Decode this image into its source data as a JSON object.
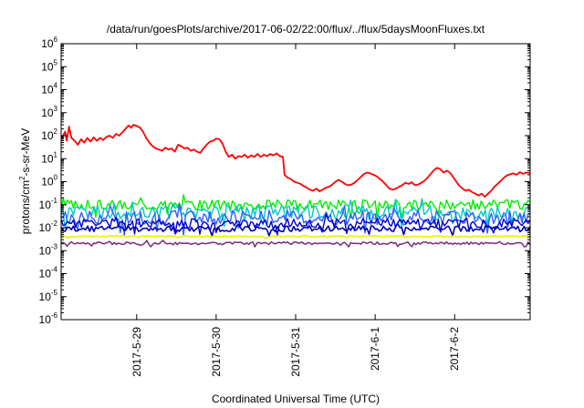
{
  "chart_data": {
    "type": "line",
    "title": "/data/run/goesPlots/archive/2017-06-02/22:00/flux/../flux/5daysMoonFluxes.txt",
    "xlabel": "Coordinated Universal Time (UTC)",
    "ylabel": {
      "prefix": "protons/cm",
      "sup": "2",
      "suffix": "-s-sr-MeV"
    },
    "x_ticks": [
      "2017-5-29",
      "2017-5-30",
      "2017-5-31",
      "2017-6-1",
      "2017-6-2"
    ],
    "y_scale": "log",
    "y_ticks": [
      {
        "value": 1e-06,
        "base": "10",
        "exp": "-6"
      },
      {
        "value": 1e-05,
        "base": "10",
        "exp": "-5"
      },
      {
        "value": 0.0001,
        "base": "10",
        "exp": "-4"
      },
      {
        "value": 0.001,
        "base": "10",
        "exp": "-3"
      },
      {
        "value": 0.01,
        "base": "10",
        "exp": "-2"
      },
      {
        "value": 0.1,
        "base": "10",
        "exp": "-1"
      },
      {
        "value": 1,
        "base": "10",
        "exp": "0"
      },
      {
        "value": 10,
        "base": "10",
        "exp": "1"
      },
      {
        "value": 100,
        "base": "10",
        "exp": "2"
      },
      {
        "value": 1000,
        "base": "10",
        "exp": "3"
      },
      {
        "value": 10000.0,
        "base": "10",
        "exp": "4"
      },
      {
        "value": 100000.0,
        "base": "10",
        "exp": "5"
      },
      {
        "value": 1000000.0,
        "base": "10",
        "exp": "6"
      }
    ],
    "xlim_days": [
      -0.95,
      4.95
    ],
    "ylim": [
      1e-06,
      1000000.0
    ],
    "grid": false,
    "legend": "none",
    "series": [
      {
        "color": "#ff0000",
        "width": 1.8,
        "points": [
          [
            -0.95,
            70
          ],
          [
            -0.9,
            150
          ],
          [
            -0.88,
            60
          ],
          [
            -0.85,
            250
          ],
          [
            -0.82,
            80
          ],
          [
            -0.78,
            60
          ],
          [
            -0.74,
            40
          ],
          [
            -0.7,
            70
          ],
          [
            -0.66,
            50
          ],
          [
            -0.62,
            80
          ],
          [
            -0.58,
            55
          ],
          [
            -0.54,
            85
          ],
          [
            -0.5,
            60
          ],
          [
            -0.46,
            80
          ],
          [
            -0.42,
            65
          ],
          [
            -0.38,
            90
          ],
          [
            -0.34,
            100
          ],
          [
            -0.3,
            80
          ],
          [
            -0.26,
            120
          ],
          [
            -0.22,
            100
          ],
          [
            -0.18,
            140
          ],
          [
            -0.14,
            200
          ],
          [
            -0.1,
            280
          ],
          [
            -0.07,
            220
          ],
          [
            -0.04,
            300
          ],
          [
            0.0,
            260
          ],
          [
            0.04,
            230
          ],
          [
            0.08,
            150
          ],
          [
            0.12,
            80
          ],
          [
            0.16,
            50
          ],
          [
            0.2,
            35
          ],
          [
            0.24,
            28
          ],
          [
            0.28,
            25
          ],
          [
            0.32,
            22
          ],
          [
            0.36,
            30
          ],
          [
            0.4,
            25
          ],
          [
            0.44,
            28
          ],
          [
            0.48,
            20
          ],
          [
            0.52,
            40
          ],
          [
            0.56,
            35
          ],
          [
            0.6,
            28
          ],
          [
            0.64,
            30
          ],
          [
            0.68,
            22
          ],
          [
            0.72,
            25
          ],
          [
            0.76,
            20
          ],
          [
            0.8,
            18
          ],
          [
            0.84,
            28
          ],
          [
            0.88,
            40
          ],
          [
            0.92,
            55
          ],
          [
            0.96,
            60
          ],
          [
            1.0,
            75
          ],
          [
            1.04,
            70
          ],
          [
            1.08,
            45
          ],
          [
            1.12,
            20
          ],
          [
            1.16,
            12
          ],
          [
            1.2,
            15
          ],
          [
            1.24,
            10
          ],
          [
            1.28,
            13
          ],
          [
            1.32,
            12
          ],
          [
            1.36,
            15
          ],
          [
            1.4,
            11
          ],
          [
            1.44,
            14
          ],
          [
            1.48,
            12
          ],
          [
            1.52,
            16
          ],
          [
            1.56,
            12
          ],
          [
            1.6,
            15
          ],
          [
            1.64,
            13
          ],
          [
            1.68,
            16
          ],
          [
            1.72,
            14
          ],
          [
            1.76,
            17
          ],
          [
            1.8,
            13
          ],
          [
            1.84,
            12
          ],
          [
            1.86,
            2.0
          ],
          [
            1.9,
            1.5
          ],
          [
            1.94,
            1.3
          ],
          [
            1.98,
            1.0
          ],
          [
            2.02,
            0.9
          ],
          [
            2.06,
            0.8
          ],
          [
            2.1,
            0.65
          ],
          [
            2.14,
            0.55
          ],
          [
            2.18,
            0.45
          ],
          [
            2.22,
            0.4
          ],
          [
            2.26,
            0.5
          ],
          [
            2.3,
            0.38
          ],
          [
            2.34,
            0.45
          ],
          [
            2.38,
            0.55
          ],
          [
            2.42,
            0.6
          ],
          [
            2.46,
            0.75
          ],
          [
            2.5,
            1.0
          ],
          [
            2.54,
            1.2
          ],
          [
            2.58,
            1.0
          ],
          [
            2.62,
            0.8
          ],
          [
            2.66,
            0.7
          ],
          [
            2.7,
            0.75
          ],
          [
            2.74,
            0.9
          ],
          [
            2.78,
            1.2
          ],
          [
            2.82,
            1.6
          ],
          [
            2.86,
            2.2
          ],
          [
            2.9,
            2.5
          ],
          [
            2.94,
            2.3
          ],
          [
            2.98,
            2.0
          ],
          [
            3.02,
            1.7
          ],
          [
            3.06,
            1.3
          ],
          [
            3.1,
            1.0
          ],
          [
            3.14,
            0.7
          ],
          [
            3.18,
            0.5
          ],
          [
            3.22,
            0.45
          ],
          [
            3.26,
            0.5
          ],
          [
            3.3,
            0.6
          ],
          [
            3.34,
            0.7
          ],
          [
            3.38,
            0.9
          ],
          [
            3.42,
            0.8
          ],
          [
            3.46,
            0.95
          ],
          [
            3.5,
            0.7
          ],
          [
            3.54,
            0.75
          ],
          [
            3.58,
            0.9
          ],
          [
            3.62,
            1.1
          ],
          [
            3.66,
            1.5
          ],
          [
            3.7,
            2.2
          ],
          [
            3.74,
            3.2
          ],
          [
            3.78,
            4.0
          ],
          [
            3.82,
            3.5
          ],
          [
            3.86,
            2.5
          ],
          [
            3.9,
            3.0
          ],
          [
            3.94,
            2.5
          ],
          [
            3.98,
            1.6
          ],
          [
            4.02,
            1.0
          ],
          [
            4.06,
            0.65
          ],
          [
            4.1,
            0.5
          ],
          [
            4.14,
            0.4
          ],
          [
            4.18,
            0.45
          ],
          [
            4.22,
            0.35
          ],
          [
            4.26,
            0.3
          ],
          [
            4.3,
            0.25
          ],
          [
            4.34,
            0.3
          ],
          [
            4.38,
            0.22
          ],
          [
            4.42,
            0.3
          ],
          [
            4.46,
            0.4
          ],
          [
            4.5,
            0.6
          ],
          [
            4.54,
            0.8
          ],
          [
            4.58,
            1.1
          ],
          [
            4.62,
            1.5
          ],
          [
            4.66,
            1.9
          ],
          [
            4.7,
            2.1
          ],
          [
            4.74,
            2.3
          ],
          [
            4.78,
            2.0
          ],
          [
            4.82,
            2.6
          ],
          [
            4.86,
            2.2
          ],
          [
            4.9,
            2.5
          ],
          [
            4.95,
            2.4
          ]
        ]
      },
      {
        "color": "#00ee00",
        "width": 1.4,
        "base": 0.1,
        "amp": 0.22,
        "seed": 3
      },
      {
        "color": "#00c8c8",
        "width": 1.4,
        "base": 0.045,
        "amp": 0.3,
        "seed": 5
      },
      {
        "color": "#3060ff",
        "width": 1.4,
        "base": 0.028,
        "amp": 0.32,
        "seed": 7
      },
      {
        "color": "#0000cd",
        "width": 1.4,
        "base": 0.016,
        "amp": 0.2,
        "seed": 11
      },
      {
        "color": "#0000b0",
        "width": 1.6,
        "base": 0.009,
        "amp": 0.12,
        "seed": 13
      },
      {
        "color": "#eeee00",
        "width": 1.6,
        "base": 0.0042,
        "amp": 0.03,
        "seed": 17
      },
      {
        "color": "#7b2a7b",
        "width": 1.5,
        "base": 0.0021,
        "amp": 0.06,
        "seed": 19
      }
    ]
  }
}
